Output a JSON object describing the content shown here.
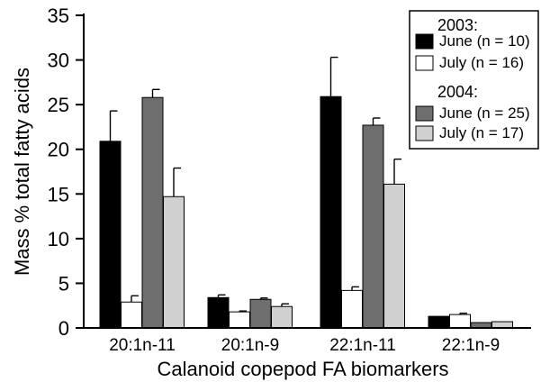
{
  "chart_data": {
    "type": "bar",
    "xlabel": "Calanoid copepod FA biomarkers",
    "ylabel": "Mass % total fatty acids",
    "ylim": [
      0,
      35
    ],
    "yticks": [
      0,
      5,
      10,
      15,
      20,
      25,
      30,
      35
    ],
    "categories": [
      "20:1n-11",
      "20:1n-9",
      "22:1n-11",
      "22:1n-9"
    ],
    "series": [
      {
        "name": "June (n = 10)",
        "year": "2003:",
        "color": "#000000",
        "values": [
          20.9,
          3.4,
          25.9,
          1.3
        ],
        "errors": [
          3.4,
          0.3,
          4.4,
          0.0
        ]
      },
      {
        "name": "July  (n = 16)",
        "year": "2003:",
        "color": "#ffffff",
        "values": [
          2.9,
          1.8,
          4.2,
          1.5
        ],
        "errors": [
          0.7,
          0.1,
          0.4,
          0.15
        ]
      },
      {
        "name": "June (n = 25)",
        "year": "2004:",
        "color": "#6e6e6e",
        "values": [
          25.8,
          3.2,
          22.7,
          0.6
        ],
        "errors": [
          0.9,
          0.15,
          0.8,
          0.0
        ]
      },
      {
        "name": "July  (n = 17)",
        "year": "2004:",
        "color": "#d0d0d0",
        "values": [
          14.7,
          2.4,
          16.1,
          0.7
        ],
        "errors": [
          3.2,
          0.3,
          2.8,
          0.0
        ]
      }
    ],
    "legend": {
      "position": "top-right",
      "groups": [
        {
          "title": "2003:",
          "series_index": [
            0,
            1
          ]
        },
        {
          "title": "2004:",
          "series_index": [
            2,
            3
          ]
        }
      ]
    },
    "grid": false
  }
}
